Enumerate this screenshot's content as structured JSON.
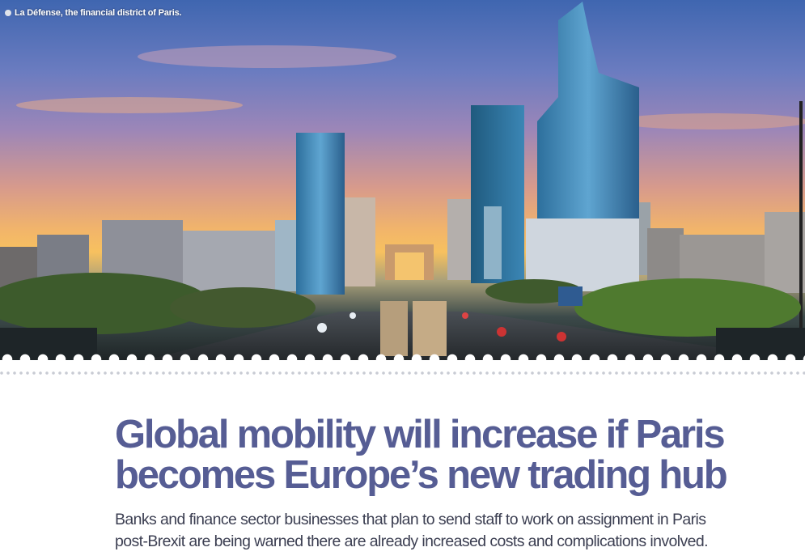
{
  "photo": {
    "caption": "La Défense, the financial district of Paris."
  },
  "article": {
    "headline_line1": "Global mobility will increase if Paris",
    "headline_line2": "becomes Europe’s new trading hub",
    "standfirst_line1": "Banks and finance sector businesses that plan to send staff to work on assignment in Paris",
    "standfirst_line2": "post-Brexit are being warned there are already increased costs and complications involved."
  },
  "colors": {
    "headline": "#565d94",
    "standfirst": "#3c3f52",
    "divider_dots": "#c8cbd3"
  }
}
